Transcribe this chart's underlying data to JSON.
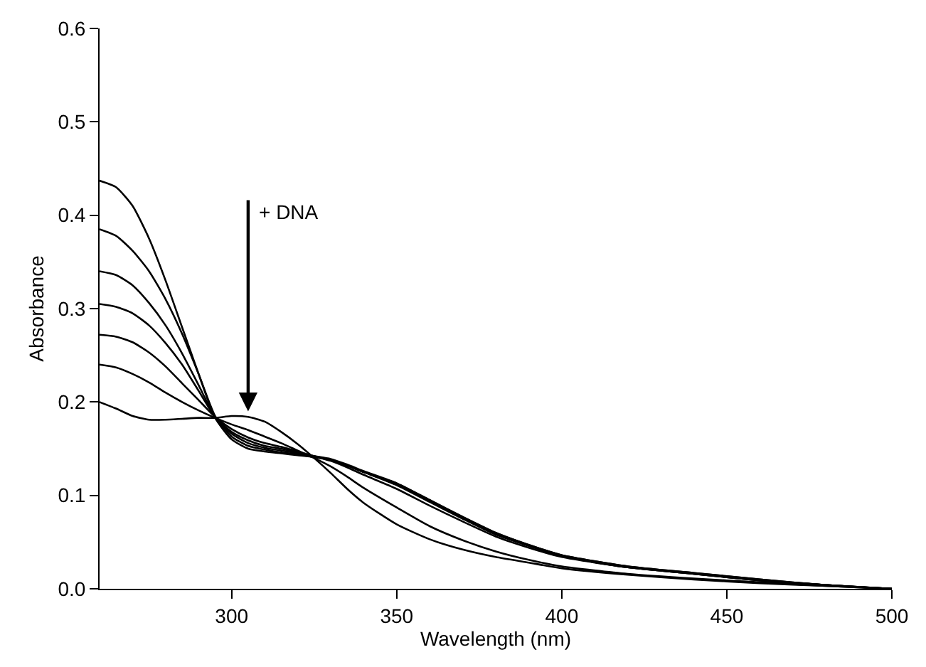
{
  "chart_data": {
    "type": "line",
    "xlabel": "Wavelength (nm)",
    "ylabel": "Absorbance",
    "x": [
      260,
      265,
      270,
      275,
      280,
      285,
      290,
      295,
      300,
      305,
      310,
      315,
      320,
      325,
      330,
      335,
      340,
      350,
      360,
      370,
      380,
      390,
      400,
      420,
      440,
      460,
      480,
      500
    ],
    "series": [
      {
        "color": "#000000",
        "values": [
          0.437,
          0.43,
          0.41,
          0.375,
          0.33,
          0.28,
          0.23,
          0.183,
          0.16,
          0.15,
          0.147,
          0.145,
          0.143,
          0.141,
          0.138,
          0.132,
          0.125,
          0.113,
          0.095,
          0.077,
          0.06,
          0.047,
          0.036,
          0.024,
          0.017,
          0.01,
          0.004,
          0
        ]
      },
      {
        "color": "#000000",
        "values": [
          0.385,
          0.378,
          0.362,
          0.34,
          0.31,
          0.273,
          0.23,
          0.185,
          0.163,
          0.153,
          0.149,
          0.146,
          0.144,
          0.141,
          0.138,
          0.132,
          0.125,
          0.112,
          0.094,
          0.076,
          0.059,
          0.046,
          0.035,
          0.023,
          0.016,
          0.009,
          0.004,
          0
        ]
      },
      {
        "color": "#000000",
        "values": [
          0.34,
          0.336,
          0.325,
          0.306,
          0.282,
          0.252,
          0.218,
          0.184,
          0.166,
          0.156,
          0.151,
          0.148,
          0.145,
          0.142,
          0.139,
          0.133,
          0.126,
          0.113,
          0.095,
          0.077,
          0.06,
          0.047,
          0.036,
          0.024,
          0.017,
          0.01,
          0.004,
          0
        ]
      },
      {
        "color": "#000000",
        "values": [
          0.305,
          0.302,
          0.295,
          0.282,
          0.263,
          0.24,
          0.212,
          0.184,
          0.168,
          0.159,
          0.153,
          0.15,
          0.146,
          0.142,
          0.138,
          0.132,
          0.125,
          0.111,
          0.093,
          0.075,
          0.058,
          0.046,
          0.035,
          0.023,
          0.016,
          0.009,
          0.004,
          0
        ]
      },
      {
        "color": "#000000",
        "values": [
          0.272,
          0.27,
          0.264,
          0.253,
          0.238,
          0.22,
          0.202,
          0.184,
          0.171,
          0.162,
          0.156,
          0.152,
          0.147,
          0.142,
          0.137,
          0.13,
          0.122,
          0.107,
          0.089,
          0.072,
          0.056,
          0.044,
          0.034,
          0.023,
          0.016,
          0.009,
          0.004,
          0
        ]
      },
      {
        "color": "#000000",
        "values": [
          0.24,
          0.237,
          0.23,
          0.221,
          0.21,
          0.2,
          0.191,
          0.183,
          0.176,
          0.17,
          0.163,
          0.156,
          0.148,
          0.14,
          0.131,
          0.12,
          0.108,
          0.087,
          0.067,
          0.052,
          0.04,
          0.031,
          0.024,
          0.016,
          0.011,
          0.007,
          0.003,
          0
        ]
      },
      {
        "color": "#000000",
        "values": [
          0.2,
          0.193,
          0.185,
          0.181,
          0.181,
          0.182,
          0.183,
          0.183,
          0.185,
          0.184,
          0.179,
          0.168,
          0.155,
          0.14,
          0.124,
          0.107,
          0.092,
          0.069,
          0.053,
          0.042,
          0.034,
          0.028,
          0.022,
          0.015,
          0.01,
          0.006,
          0.003,
          0
        ]
      }
    ],
    "annotations": [
      {
        "text": "+ DNA",
        "x": 305,
        "y": 0.19
      }
    ],
    "xlim": [
      260,
      500
    ],
    "xticks": [
      300,
      350,
      400,
      450,
      500
    ],
    "ylim": [
      0,
      0.6
    ],
    "yticks": [
      {
        "value": 0,
        "label": "0.0"
      },
      0.1,
      0.2,
      0.3,
      0.4,
      0.5,
      0.6
    ],
    "marker": "none",
    "line_style": "solid"
  }
}
